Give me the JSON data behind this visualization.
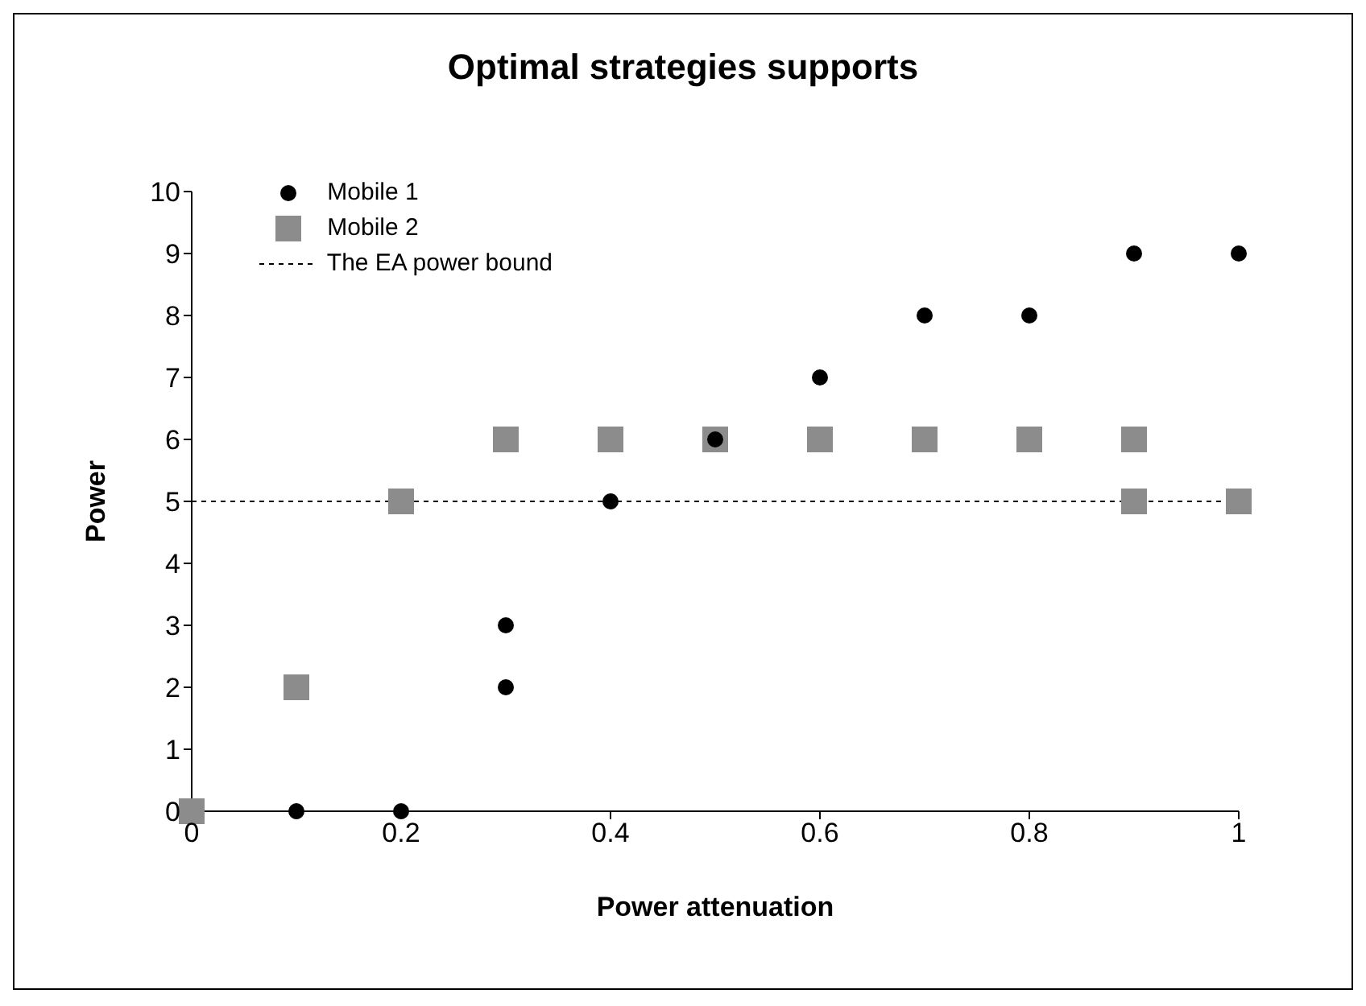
{
  "chart_data": {
    "type": "scatter",
    "title": "Optimal strategies supports",
    "xlabel": "Power attenuation",
    "ylabel": "Power",
    "xlim": [
      0,
      1
    ],
    "xticks": [
      0,
      0.2,
      0.4,
      0.6,
      0.8,
      1
    ],
    "ylim": [
      0,
      10
    ],
    "yticks": [
      0,
      1,
      2,
      3,
      4,
      5,
      6,
      7,
      8,
      9,
      10
    ],
    "grid": false,
    "legend": "top left",
    "series": [
      {
        "name": "Mobile 1",
        "color": "#000000",
        "marker": "circle",
        "x": [
          0.1,
          0.2,
          0.3,
          0.3,
          0.4,
          0.5,
          0.6,
          0.7,
          0.8,
          0.9,
          1
        ],
        "values": [
          0,
          0,
          2,
          3,
          5,
          6,
          7,
          8,
          8,
          9,
          9
        ]
      },
      {
        "name": "Mobile 2",
        "color": "#8c8c8c",
        "marker": "square",
        "x": [
          0,
          0.1,
          0.2,
          0.3,
          0.4,
          0.5,
          0.6,
          0.7,
          0.8,
          0.9,
          0.9,
          1
        ],
        "values": [
          0,
          2,
          5,
          6,
          6,
          6,
          6,
          6,
          6,
          6,
          5,
          5
        ]
      }
    ],
    "ref_lines": [
      {
        "axis": "y",
        "value": 5,
        "label": "The EA power bound",
        "color": "#000000",
        "line_style": "dashed"
      }
    ]
  }
}
